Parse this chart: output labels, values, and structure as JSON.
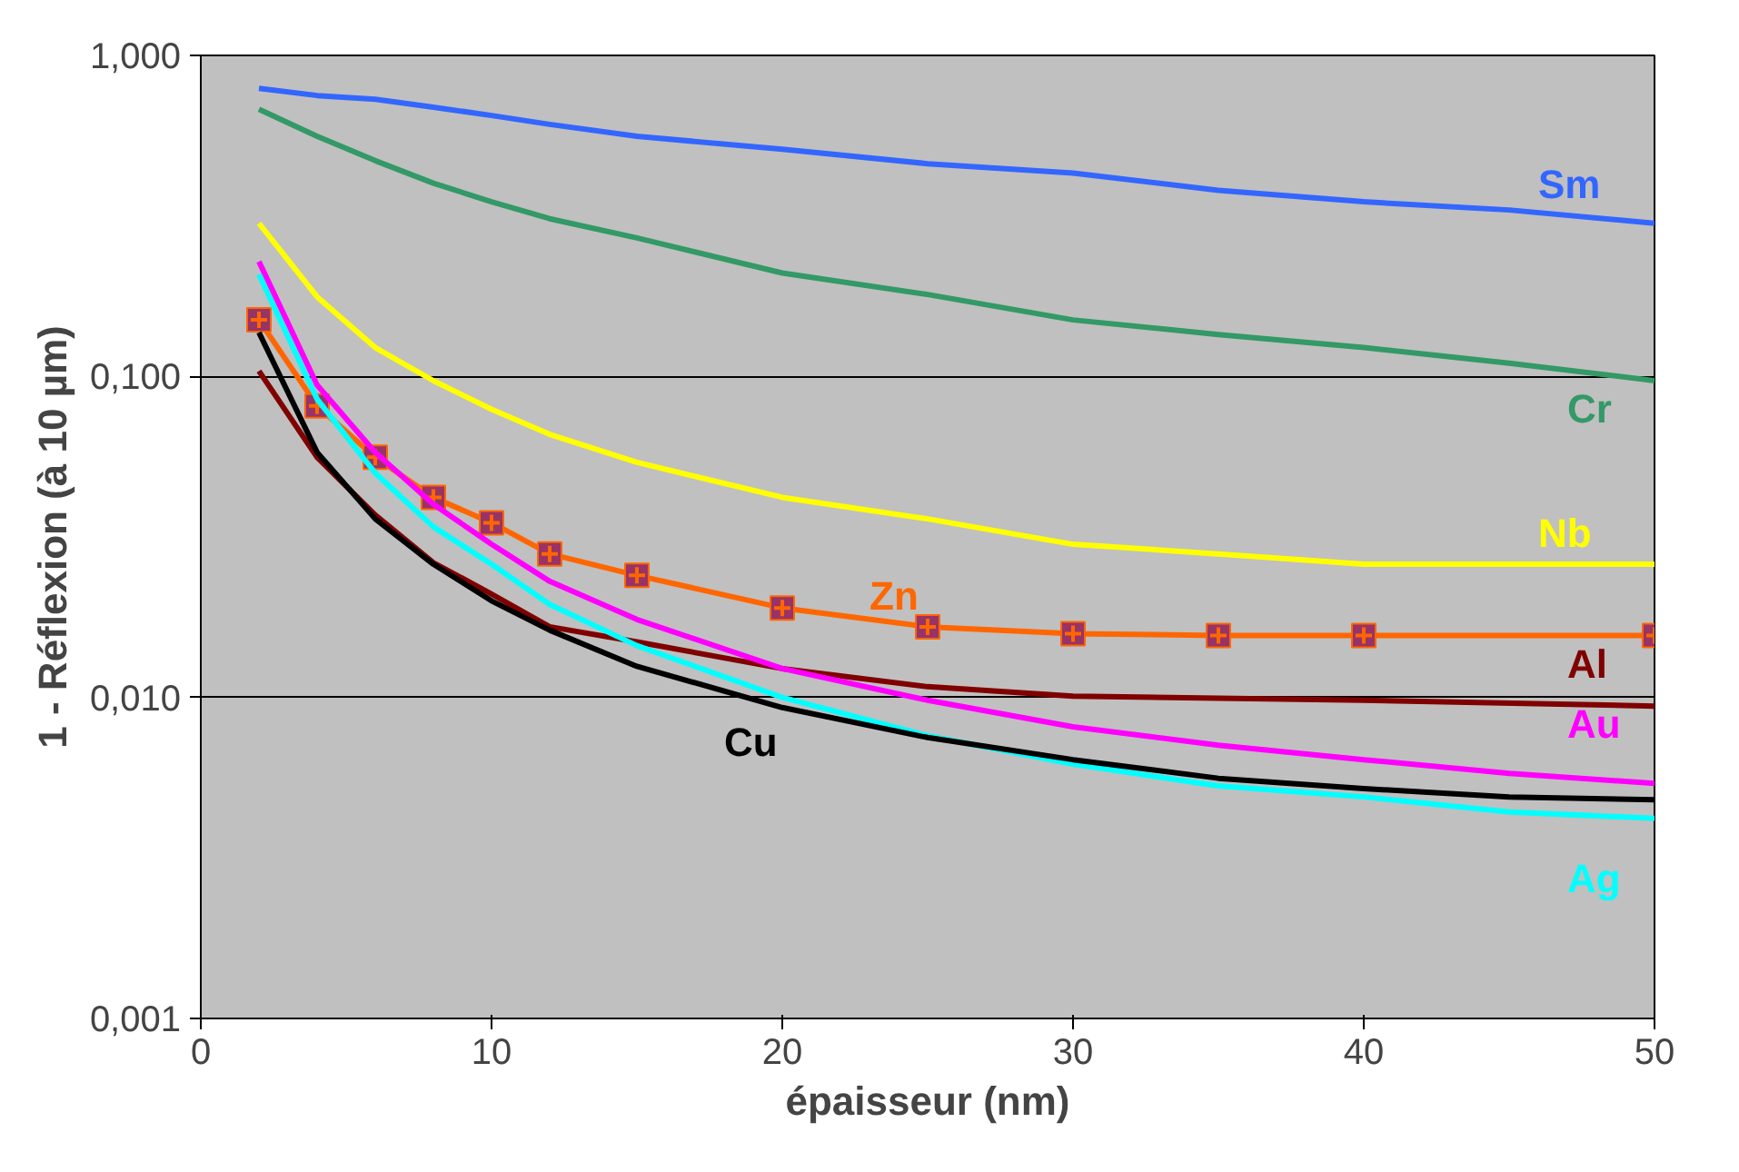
{
  "chart_data": {
    "type": "line",
    "xlabel": "épaisseur (nm)",
    "ylabel": "1 - Réflexion (à 10 µm)",
    "log": "y",
    "grid": "y",
    "marker": "none",
    "xlim": [
      0,
      50
    ],
    "xticks": [
      0,
      10,
      20,
      30,
      40,
      50
    ],
    "ylim": [
      0.001,
      1
    ],
    "yticks": [
      {
        "value": 0.001,
        "label": "0,001"
      },
      {
        "value": 0.01,
        "label": "0,010"
      },
      {
        "value": 0.1,
        "label": "0,100"
      },
      {
        "value": 1,
        "label": "1,000"
      }
    ],
    "series": [
      {
        "name": "Sm",
        "color": "#3366ff",
        "x": [
          2,
          4,
          6,
          8,
          10,
          12,
          15,
          20,
          25,
          30,
          35,
          40,
          45,
          50
        ],
        "values": [
          0.79,
          0.75,
          0.73,
          0.69,
          0.65,
          0.61,
          0.56,
          0.51,
          0.46,
          0.43,
          0.38,
          0.35,
          0.33,
          0.3
        ]
      },
      {
        "name": "Cr",
        "color": "#339966",
        "x": [
          2,
          4,
          6,
          8,
          10,
          12,
          15,
          20,
          25,
          30,
          35,
          40,
          45,
          50
        ],
        "values": [
          0.68,
          0.56,
          0.47,
          0.4,
          0.35,
          0.31,
          0.27,
          0.21,
          0.18,
          0.15,
          0.135,
          0.123,
          0.11,
          0.097
        ]
      },
      {
        "name": "Nb",
        "color": "#ffff00",
        "x": [
          2,
          4,
          6,
          8,
          10,
          12,
          15,
          20,
          25,
          30,
          35,
          40,
          50
        ],
        "values": [
          0.3,
          0.177,
          0.123,
          0.097,
          0.079,
          0.066,
          0.054,
          0.042,
          0.036,
          0.03,
          0.028,
          0.026,
          0.026
        ]
      },
      {
        "name": "Zn",
        "color": "#ff6600",
        "marker": "square",
        "x": [
          2,
          4,
          6,
          8,
          10,
          12,
          15,
          20,
          25,
          30,
          35,
          40,
          50
        ],
        "values": [
          0.15,
          0.081,
          0.056,
          0.042,
          0.035,
          0.028,
          0.024,
          0.019,
          0.0166,
          0.0158,
          0.0156,
          0.0156,
          0.0156
        ]
      },
      {
        "name": "Al",
        "color": "#800000",
        "x": [
          2,
          4,
          6,
          8,
          10,
          12,
          15,
          20,
          25,
          30,
          40,
          50
        ],
        "values": [
          0.104,
          0.056,
          0.037,
          0.0263,
          0.021,
          0.0166,
          0.0149,
          0.0123,
          0.0108,
          0.0101,
          0.0098,
          0.0094
        ]
      },
      {
        "name": "Au",
        "color": "#ff00ff",
        "x": [
          2,
          4,
          6,
          8,
          10,
          12,
          15,
          20,
          25,
          30,
          35,
          40,
          45,
          50
        ],
        "values": [
          0.228,
          0.094,
          0.058,
          0.04,
          0.03,
          0.023,
          0.0175,
          0.0123,
          0.0098,
          0.0081,
          0.0071,
          0.0064,
          0.0058,
          0.0054
        ]
      },
      {
        "name": "Ag",
        "color": "#00ffff",
        "x": [
          2,
          4,
          6,
          8,
          10,
          12,
          15,
          20,
          25,
          30,
          35,
          40,
          45,
          50
        ],
        "values": [
          0.208,
          0.085,
          0.05,
          0.034,
          0.026,
          0.0195,
          0.0145,
          0.01,
          0.0076,
          0.0062,
          0.0053,
          0.0049,
          0.0044,
          0.0042
        ]
      },
      {
        "name": "Cu",
        "color": "#000000",
        "x": [
          2,
          4,
          6,
          8,
          10,
          12,
          15,
          20,
          25,
          30,
          35,
          40,
          45,
          50
        ],
        "values": [
          0.137,
          0.058,
          0.036,
          0.026,
          0.02,
          0.0162,
          0.0125,
          0.0093,
          0.0075,
          0.0064,
          0.0056,
          0.0052,
          0.0049,
          0.0048
        ]
      }
    ]
  }
}
